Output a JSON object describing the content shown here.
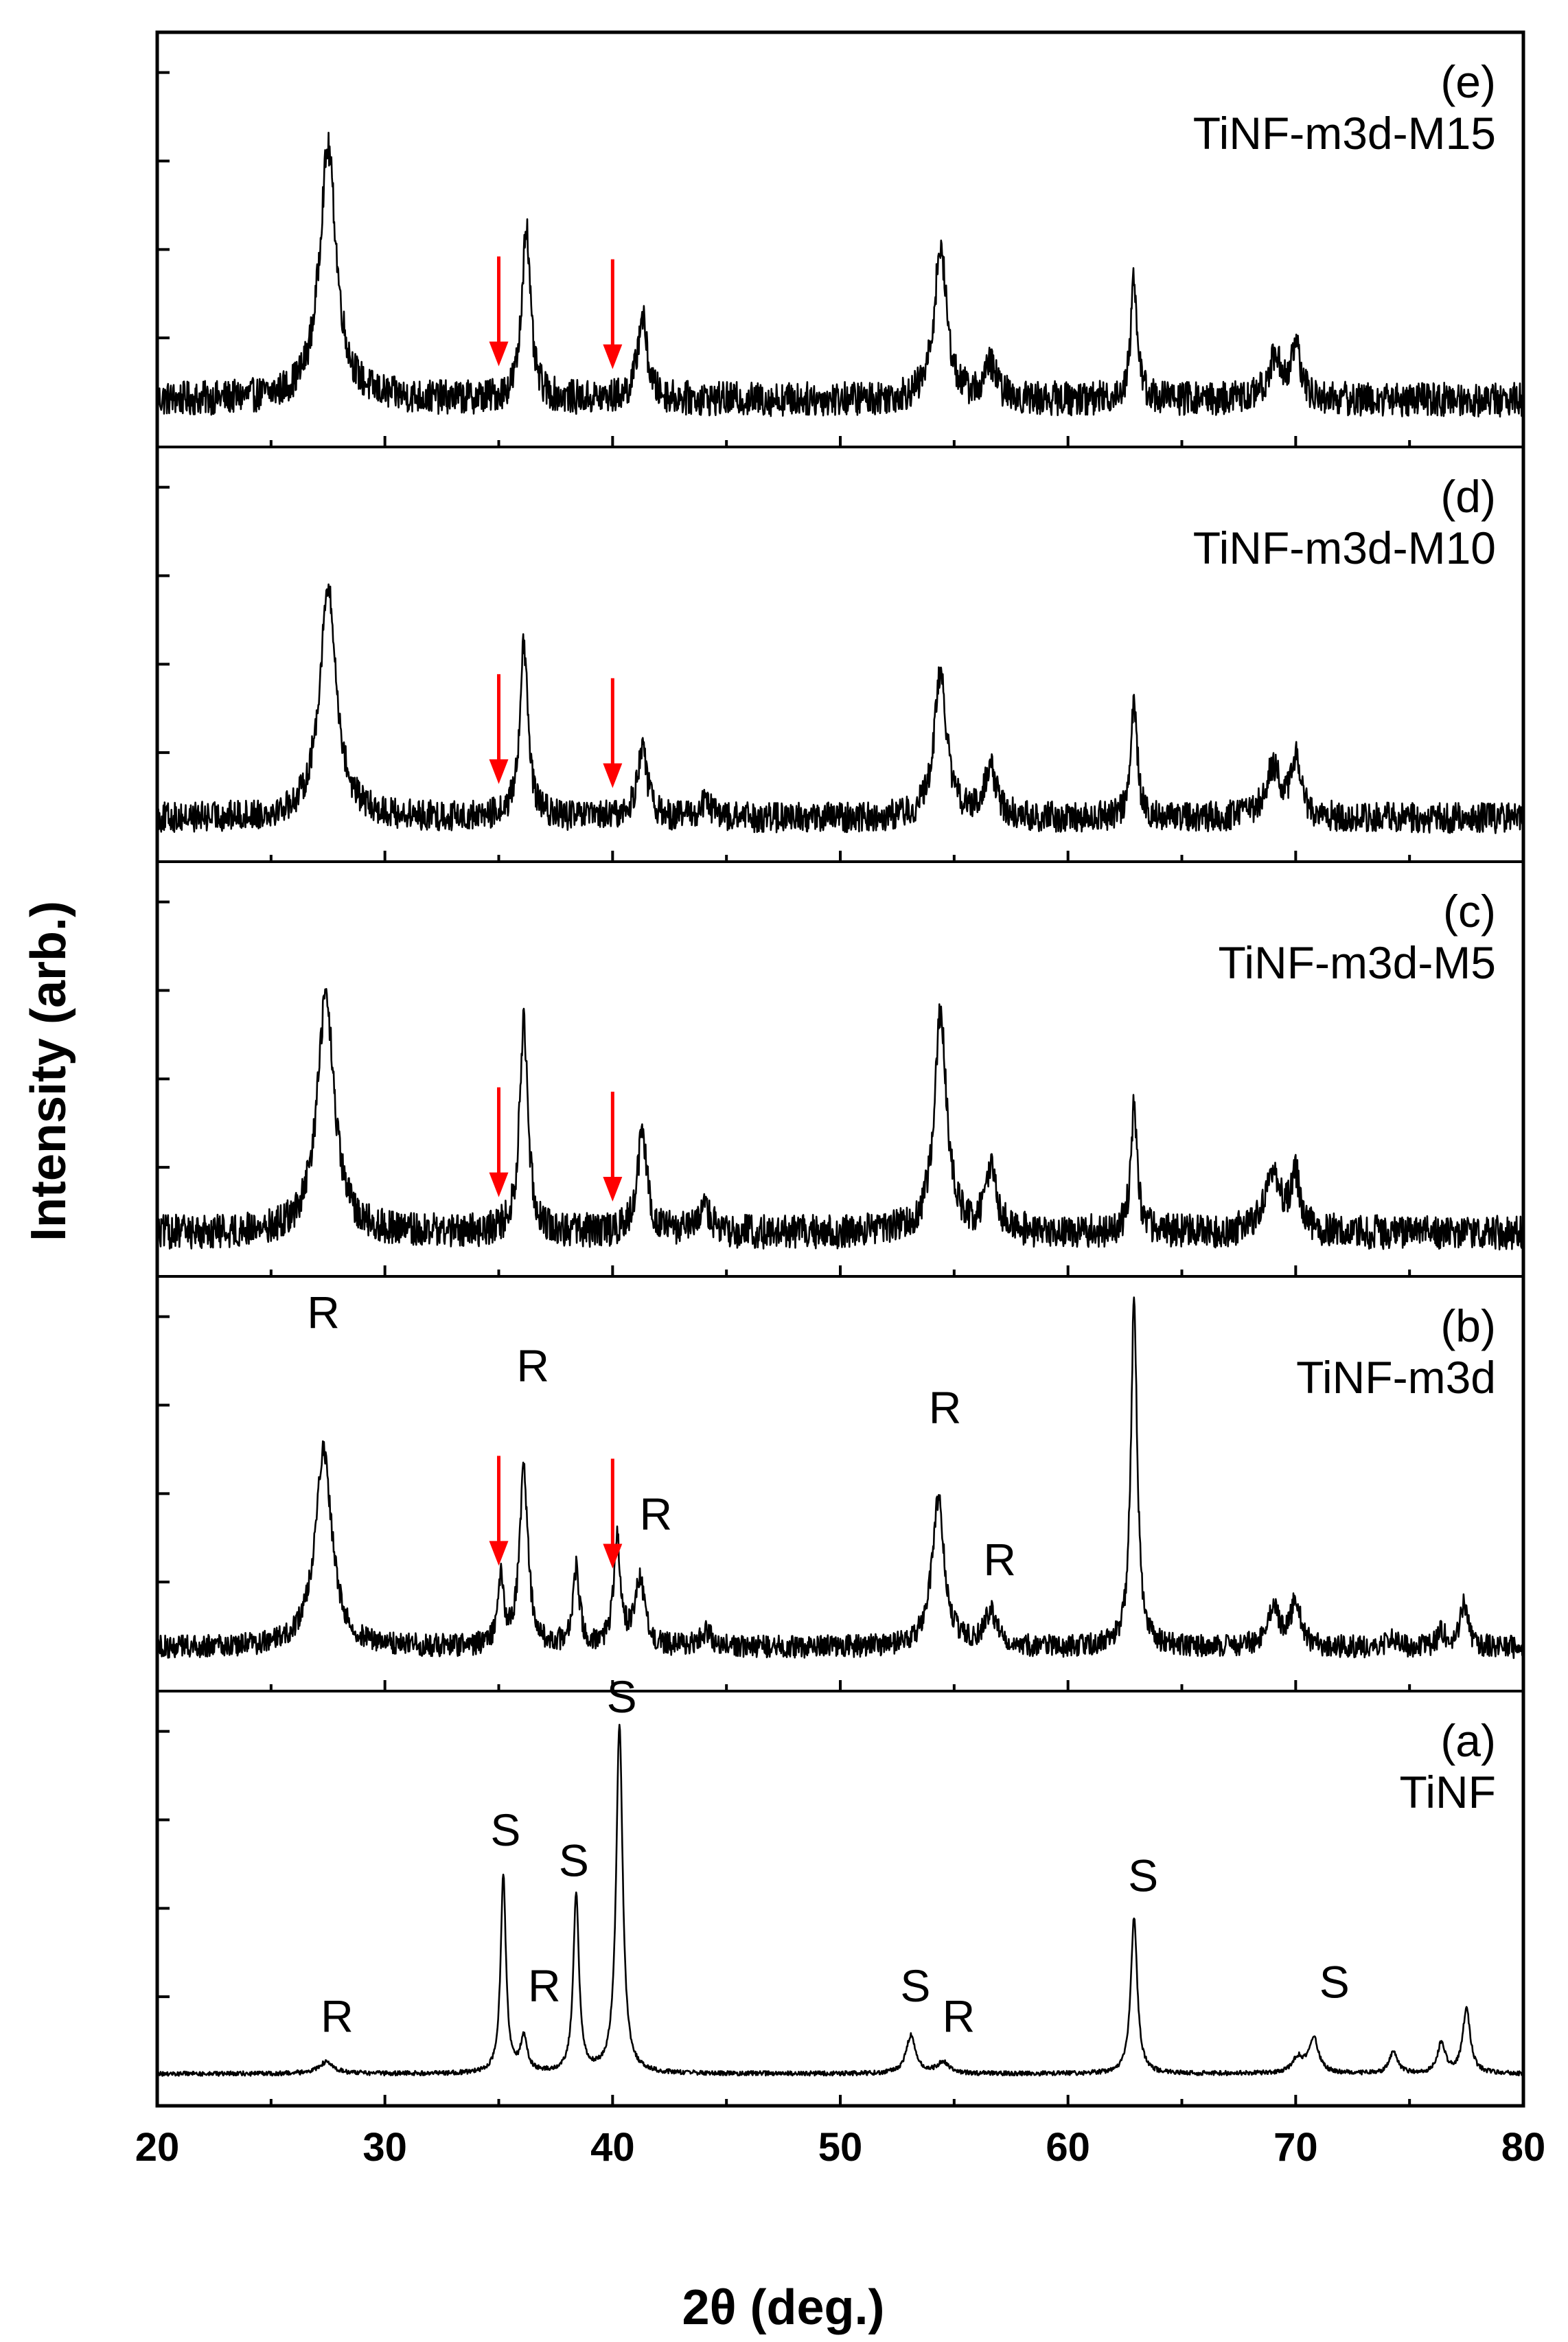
{
  "chart_data": {
    "type": "line",
    "xlabel": "2θ (deg.)",
    "ylabel": "Intensity (arb.)",
    "xlim": [
      20,
      80
    ],
    "xticks": [
      20,
      30,
      40,
      50,
      60,
      70,
      80
    ],
    "xtick_labels": [
      "20",
      "30",
      "40",
      "50",
      "60",
      "70",
      "80"
    ],
    "panels": [
      {
        "tag": "(e)",
        "name": "TiNF-m3d-M15",
        "noise": 0.045,
        "baseline": 0.07,
        "peaks": [
          [
            27.5,
            0.66,
            0.45
          ],
          [
            36.2,
            0.46,
            0.22
          ],
          [
            41.3,
            0.22,
            0.25
          ],
          [
            54.4,
            0.4,
            0.33
          ],
          [
            56.6,
            0.09,
            0.3
          ],
          [
            62.9,
            0.32,
            0.17
          ],
          [
            69.1,
            0.11,
            0.35
          ],
          [
            70.0,
            0.13,
            0.25
          ]
        ],
        "arrows": [
          35.0,
          40.0
        ],
        "peak_labels": []
      },
      {
        "tag": "(d)",
        "name": "TiNF-m3d-M10",
        "noise": 0.04,
        "baseline": 0.06,
        "peaks": [
          [
            27.5,
            0.6,
            0.45
          ],
          [
            36.1,
            0.45,
            0.22
          ],
          [
            41.3,
            0.19,
            0.25
          ],
          [
            44.1,
            0.04,
            0.3
          ],
          [
            54.4,
            0.38,
            0.33
          ],
          [
            56.6,
            0.13,
            0.3
          ],
          [
            62.9,
            0.3,
            0.17
          ],
          [
            69.0,
            0.13,
            0.4
          ],
          [
            70.0,
            0.15,
            0.25
          ]
        ],
        "arrows": [
          35.0,
          40.0
        ],
        "peak_labels": []
      },
      {
        "tag": "(c)",
        "name": "TiNF-m3d-M5",
        "noise": 0.045,
        "baseline": 0.06,
        "peaks": [
          [
            27.4,
            0.62,
            0.45
          ],
          [
            36.1,
            0.55,
            0.22
          ],
          [
            41.3,
            0.26,
            0.25
          ],
          [
            44.1,
            0.06,
            0.3
          ],
          [
            54.4,
            0.58,
            0.33
          ],
          [
            56.6,
            0.16,
            0.3
          ],
          [
            62.9,
            0.34,
            0.17
          ],
          [
            69.0,
            0.16,
            0.4
          ],
          [
            70.0,
            0.14,
            0.25
          ]
        ],
        "arrows": [
          35.0,
          40.0
        ],
        "peak_labels": []
      },
      {
        "tag": "(b)",
        "name": "TiNF-m3d",
        "noise": 0.03,
        "baseline": 0.06,
        "peaks": [
          [
            27.3,
            0.52,
            0.45
          ],
          [
            35.1,
            0.18,
            0.15
          ],
          [
            36.1,
            0.46,
            0.22
          ],
          [
            38.4,
            0.2,
            0.18
          ],
          [
            40.2,
            0.28,
            0.18
          ],
          [
            41.2,
            0.18,
            0.25
          ],
          [
            44.1,
            0.04,
            0.3
          ],
          [
            54.3,
            0.39,
            0.33
          ],
          [
            56.6,
            0.09,
            0.3
          ],
          [
            62.9,
            0.9,
            0.17
          ],
          [
            69.0,
            0.1,
            0.35
          ],
          [
            70.0,
            0.12,
            0.25
          ],
          [
            74.2,
            0.03,
            0.2
          ],
          [
            76.4,
            0.04,
            0.2
          ],
          [
            77.4,
            0.12,
            0.2
          ]
        ],
        "arrows": [
          35.0,
          40.0
        ],
        "peak_labels": [
          {
            "text": "R",
            "x": 27.3,
            "y": 0.9
          },
          {
            "text": "R",
            "x": 36.5,
            "y": 0.76
          },
          {
            "text": "R",
            "x": 41.9,
            "y": 0.37
          },
          {
            "text": "R",
            "x": 54.6,
            "y": 0.65
          },
          {
            "text": "R",
            "x": 57.0,
            "y": 0.25
          }
        ]
      },
      {
        "tag": "(a)",
        "name": "TiNF",
        "noise": 0.006,
        "baseline": 0.03,
        "peaks": [
          [
            27.4,
            0.03,
            0.4
          ],
          [
            35.2,
            0.52,
            0.14
          ],
          [
            36.1,
            0.09,
            0.18
          ],
          [
            38.4,
            0.47,
            0.15
          ],
          [
            40.3,
            0.92,
            0.17
          ],
          [
            53.1,
            0.1,
            0.25
          ],
          [
            54.5,
            0.03,
            0.3
          ],
          [
            62.9,
            0.41,
            0.17
          ],
          [
            70.1,
            0.04,
            0.3
          ],
          [
            70.8,
            0.09,
            0.25
          ],
          [
            74.3,
            0.06,
            0.2
          ],
          [
            76.4,
            0.08,
            0.2
          ],
          [
            77.5,
            0.17,
            0.2
          ]
        ],
        "arrows": [],
        "peak_labels": [
          {
            "text": "R",
            "x": 27.9,
            "y": 0.14
          },
          {
            "text": "S",
            "x": 35.3,
            "y": 0.63
          },
          {
            "text": "R",
            "x": 37.0,
            "y": 0.22
          },
          {
            "text": "S",
            "x": 38.3,
            "y": 0.55
          },
          {
            "text": "S",
            "x": 40.4,
            "y": 0.98
          },
          {
            "text": "S",
            "x": 53.3,
            "y": 0.22
          },
          {
            "text": "R",
            "x": 55.2,
            "y": 0.14
          },
          {
            "text": "S",
            "x": 63.3,
            "y": 0.51
          },
          {
            "text": "S",
            "x": 71.7,
            "y": 0.23
          }
        ]
      }
    ]
  }
}
